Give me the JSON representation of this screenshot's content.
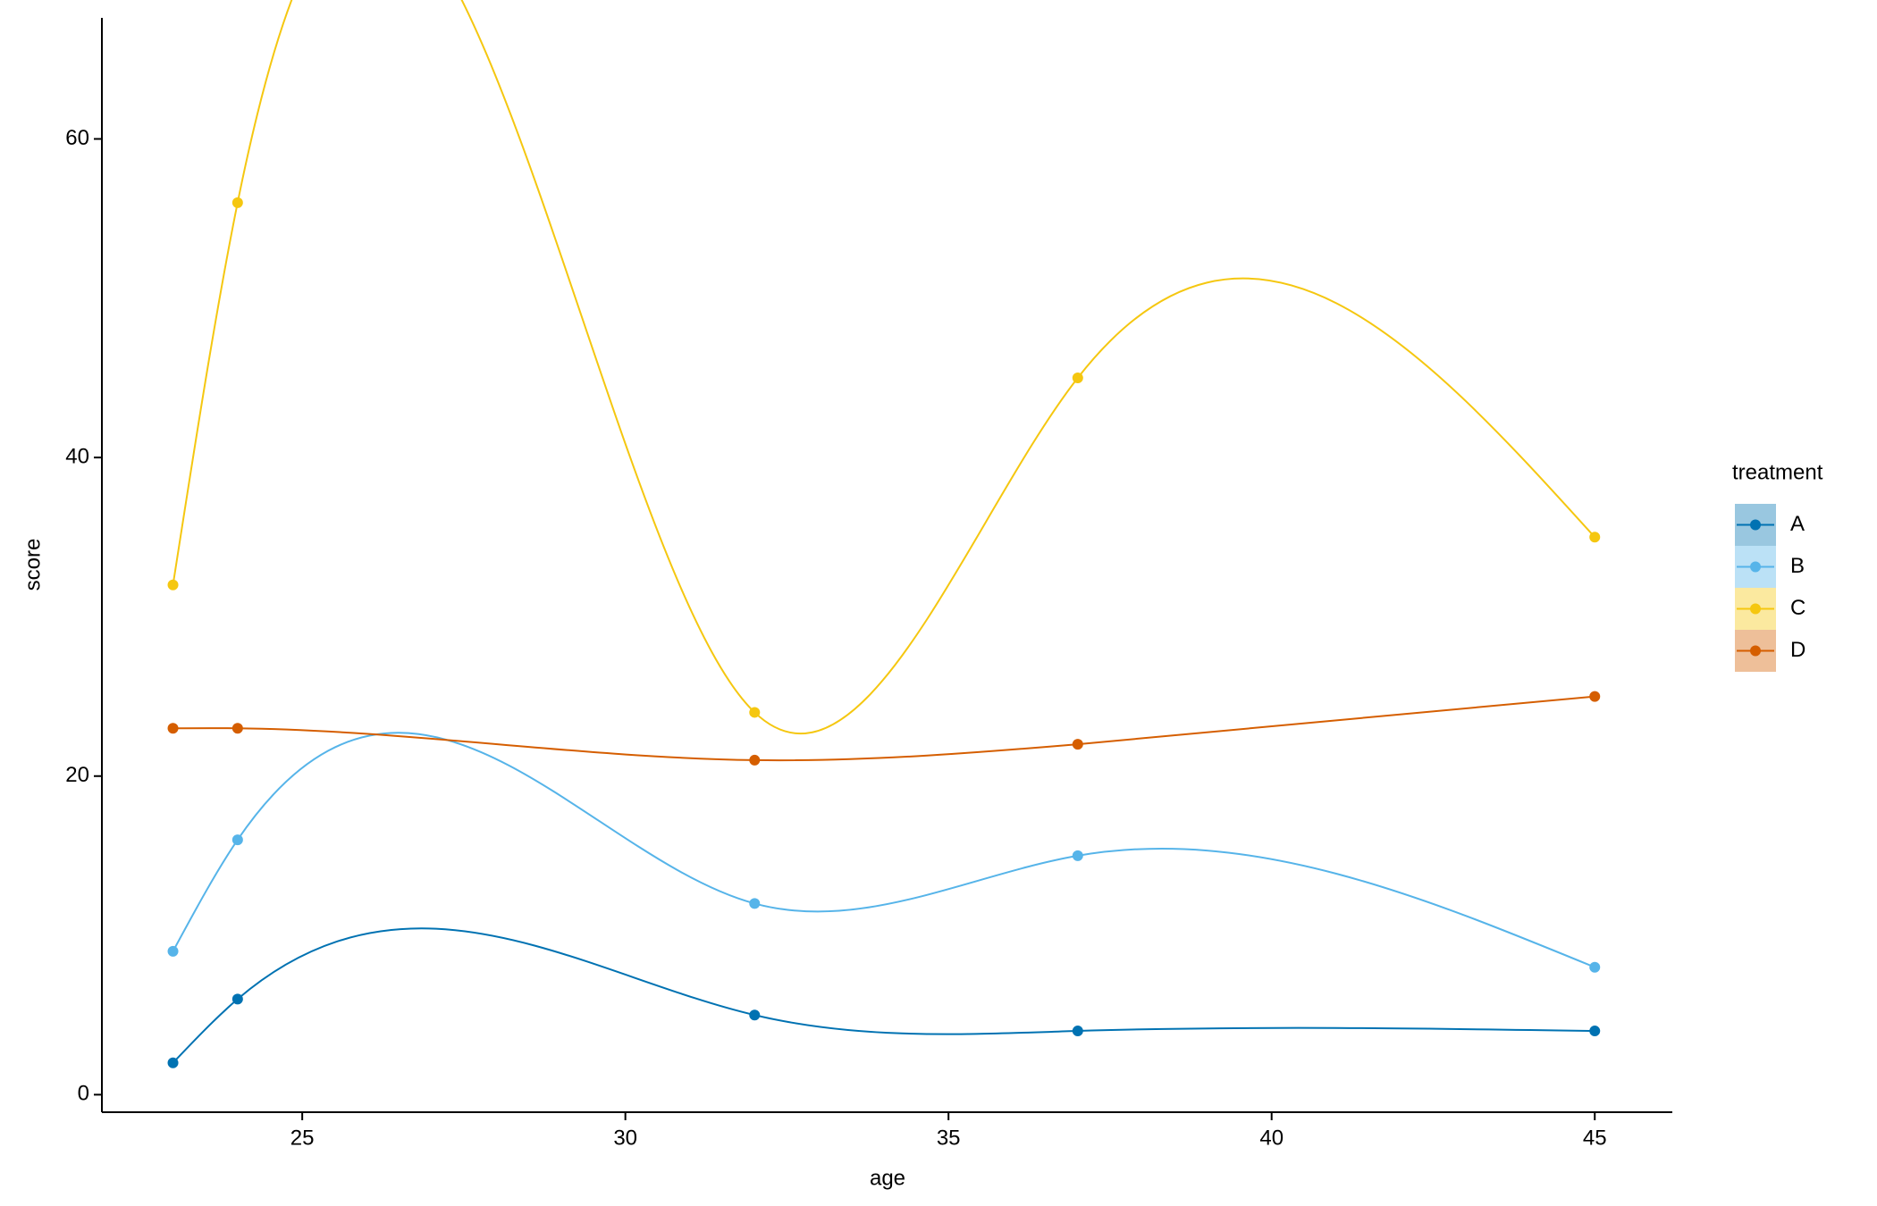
{
  "chart_data": {
    "type": "line",
    "smooth": true,
    "x_label": "age",
    "y_label": "score",
    "legend_title": "treatment",
    "legend": "right",
    "x": [
      23,
      24,
      32,
      37,
      45
    ],
    "series": [
      {
        "name": "A",
        "color": "#0072B2",
        "values": [
          2,
          6,
          5,
          4,
          4
        ]
      },
      {
        "name": "B",
        "color": "#56B4E9",
        "values": [
          9,
          16,
          12,
          15,
          8
        ]
      },
      {
        "name": "C",
        "color": "#F5C710",
        "values": [
          32,
          56,
          24,
          45,
          35
        ]
      },
      {
        "name": "D",
        "color": "#D55E00",
        "values": [
          23,
          23,
          21,
          22,
          25
        ]
      }
    ],
    "xlim": [
      21.9,
      46.2
    ],
    "xticks": [
      25,
      30,
      35,
      40,
      45
    ],
    "ylim": [
      -1.1,
      67.6
    ],
    "yticks": [
      0,
      20,
      40,
      60
    ]
  }
}
